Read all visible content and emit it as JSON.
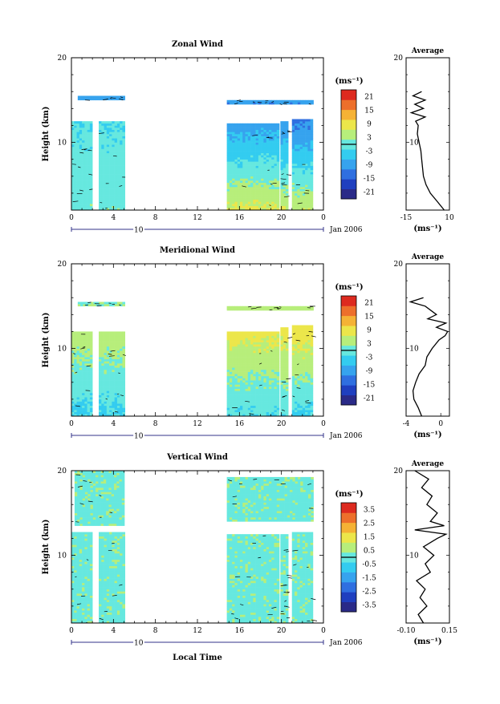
{
  "colorscale": [
    "#2a2a88",
    "#1f3fbf",
    "#2f6fe0",
    "#36a3ee",
    "#33ccf0",
    "#66e8df",
    "#b7ee7b",
    "#ece64a",
    "#f5b235",
    "#ed6f2b",
    "#dd2a1f"
  ],
  "shared": {
    "date_label": "Jan 2006",
    "day_label": "10",
    "x_tick_labels": [
      "0",
      "4",
      "8",
      "12",
      "16",
      "20",
      "0"
    ],
    "units_label": "(ms⁻¹)",
    "ylabel": "Height (km)",
    "avg_title": "Average",
    "xlabel": "Local Time"
  },
  "chart_data": [
    {
      "type": "heatmap",
      "title": "Zonal Wind",
      "xlabel": "",
      "ylabel": "Height (km)",
      "xlim": [
        0,
        24
      ],
      "ylim": [
        2,
        20
      ],
      "y_ticks": [
        "10",
        "20"
      ],
      "colorbar_ticks": [
        "21",
        "15",
        "9",
        "3",
        "-3",
        "-9",
        "-15",
        "-21"
      ],
      "colorbar_range": [
        -24,
        24
      ],
      "blocks": [
        {
          "t0": 0.0,
          "t1": 1.8,
          "h0": 2.0,
          "h1": 12.5,
          "v_low": 1,
          "v_high": -2
        },
        {
          "t0": 2.6,
          "t1": 4.9,
          "h0": 2.0,
          "h1": 12.5,
          "v_low": 1,
          "v_high": -2
        },
        {
          "t0": 0.6,
          "t1": 4.9,
          "h0": 15.0,
          "h1": 15.4,
          "v_low": -8,
          "v_high": -8
        },
        {
          "t0": 14.8,
          "t1": 19.6,
          "h0": 2.0,
          "h1": 12.2,
          "v_low": 7,
          "v_high": -9
        },
        {
          "t0": 19.9,
          "t1": 20.6,
          "h0": 2.0,
          "h1": 12.4,
          "v_low": 6,
          "v_high": -10
        },
        {
          "t0": 21.0,
          "t1": 23.0,
          "h0": 2.0,
          "h1": 12.6,
          "v_low": 6,
          "v_high": -12
        },
        {
          "t0": 14.8,
          "t1": 23.0,
          "h0": 14.5,
          "h1": 15.0,
          "v_low": -10,
          "v_high": -6
        }
      ],
      "average": {
        "xlim": [
          -15,
          10
        ],
        "x_ticks": [
          "-15",
          "10"
        ],
        "xlabel": "(ms⁻¹)",
        "height": [
          2,
          3,
          4,
          5,
          6,
          7,
          8,
          9,
          10,
          11,
          12,
          12.5,
          13,
          13.5,
          14,
          14.5,
          15,
          15.5,
          16
        ],
        "value": [
          7,
          3,
          -1,
          -3.5,
          -5,
          -5.5,
          -6,
          -6.5,
          -7.5,
          -8.5,
          -8,
          -9.5,
          -4,
          -12,
          -5,
          -10,
          -4,
          -11,
          -6
        ]
      }
    },
    {
      "type": "heatmap",
      "title": "Meridional Wind",
      "xlabel": "",
      "ylabel": "Height (km)",
      "xlim": [
        0,
        24
      ],
      "ylim": [
        2,
        20
      ],
      "y_ticks": [
        "10",
        "20"
      ],
      "colorbar_ticks": [
        "21",
        "15",
        "9",
        "3",
        "-3",
        "-9",
        "-15",
        "-21"
      ],
      "colorbar_range": [
        -24,
        24
      ],
      "blocks": [
        {
          "t0": 0.0,
          "t1": 1.8,
          "h0": 2.0,
          "h1": 12.0,
          "v_low": -3,
          "v_high": 5
        },
        {
          "t0": 2.6,
          "t1": 4.9,
          "h0": 2.0,
          "h1": 12.0,
          "v_low": -3,
          "v_high": 5
        },
        {
          "t0": 0.6,
          "t1": 4.9,
          "h0": 15.0,
          "h1": 15.4,
          "v_low": 2,
          "v_high": 2
        },
        {
          "t0": 14.8,
          "t1": 19.6,
          "h0": 2.0,
          "h1": 12.0,
          "v_low": -2,
          "v_high": 8
        },
        {
          "t0": 19.9,
          "t1": 20.6,
          "h0": 2.0,
          "h1": 12.4,
          "v_low": -2,
          "v_high": 9
        },
        {
          "t0": 21.0,
          "t1": 23.0,
          "h0": 2.0,
          "h1": 12.6,
          "v_low": -3,
          "v_high": 10
        },
        {
          "t0": 14.8,
          "t1": 23.0,
          "h0": 14.5,
          "h1": 15.0,
          "v_low": 4,
          "v_high": 6
        }
      ],
      "average": {
        "xlim": [
          -4,
          1
        ],
        "x_ticks": [
          "-4",
          "0"
        ],
        "xlabel": "(ms⁻¹)",
        "height": [
          2,
          3,
          4,
          5,
          6,
          7,
          8,
          9,
          10,
          11,
          11.5,
          12,
          12.5,
          13,
          13.5,
          14,
          15,
          15.5,
          16
        ],
        "value": [
          -2.2,
          -2.6,
          -3.1,
          -3.2,
          -2.9,
          -2.5,
          -1.8,
          -1.6,
          -1.0,
          -0.2,
          0.5,
          0.8,
          -0.5,
          0.6,
          -1.5,
          -0.5,
          -1.8,
          -3.5,
          -2.0
        ]
      }
    },
    {
      "type": "heatmap",
      "title": "Vertical Wind",
      "xlabel": "Local Time",
      "ylabel": "Height (km)",
      "xlim": [
        0,
        24
      ],
      "ylim": [
        2,
        20
      ],
      "y_ticks": [
        "10",
        "20"
      ],
      "colorbar_ticks": [
        "3.5",
        "2.5",
        "1.5",
        "0.5",
        "-0.5",
        "-1.5",
        "-2.5",
        "-3.5"
      ],
      "colorbar_range": [
        -4,
        4
      ],
      "blocks": [
        {
          "t0": 0.0,
          "t1": 1.8,
          "h0": 2.0,
          "h1": 12.6,
          "v_low": 0.2,
          "v_high": 0.2
        },
        {
          "t0": 2.6,
          "t1": 4.9,
          "h0": 2.0,
          "h1": 12.6,
          "v_low": 0.2,
          "v_high": 0.2
        },
        {
          "t0": 0.3,
          "t1": 4.9,
          "h0": 13.5,
          "h1": 19.8,
          "v_low": 0.2,
          "v_high": 0.2
        },
        {
          "t0": 14.8,
          "t1": 19.6,
          "h0": 2.0,
          "h1": 12.4,
          "v_low": 0.2,
          "v_high": 0.2
        },
        {
          "t0": 19.9,
          "t1": 20.6,
          "h0": 2.0,
          "h1": 12.4,
          "v_low": 0.2,
          "v_high": 0.2
        },
        {
          "t0": 21.0,
          "t1": 23.0,
          "h0": 2.0,
          "h1": 12.6,
          "v_low": 0.2,
          "v_high": 0.2
        },
        {
          "t0": 14.8,
          "t1": 23.0,
          "h0": 14.0,
          "h1": 19.2,
          "v_low": 0.2,
          "v_high": 0.2
        }
      ],
      "average": {
        "xlim": [
          -0.1,
          0.15
        ],
        "x_ticks": [
          "-0.10",
          "0.15"
        ],
        "xlabel": "(ms⁻¹)",
        "height": [
          2,
          3,
          4,
          5,
          6,
          7,
          8,
          9,
          10,
          11,
          12,
          12.5,
          13,
          13.5,
          14,
          15,
          16,
          17,
          18,
          19,
          20
        ],
        "value": [
          0.0,
          -0.03,
          0.02,
          -0.02,
          0.01,
          -0.04,
          0.04,
          0.01,
          0.06,
          0.0,
          0.08,
          0.13,
          -0.05,
          0.12,
          0.04,
          0.08,
          0.02,
          0.05,
          -0.01,
          0.03,
          -0.05
        ]
      }
    }
  ]
}
